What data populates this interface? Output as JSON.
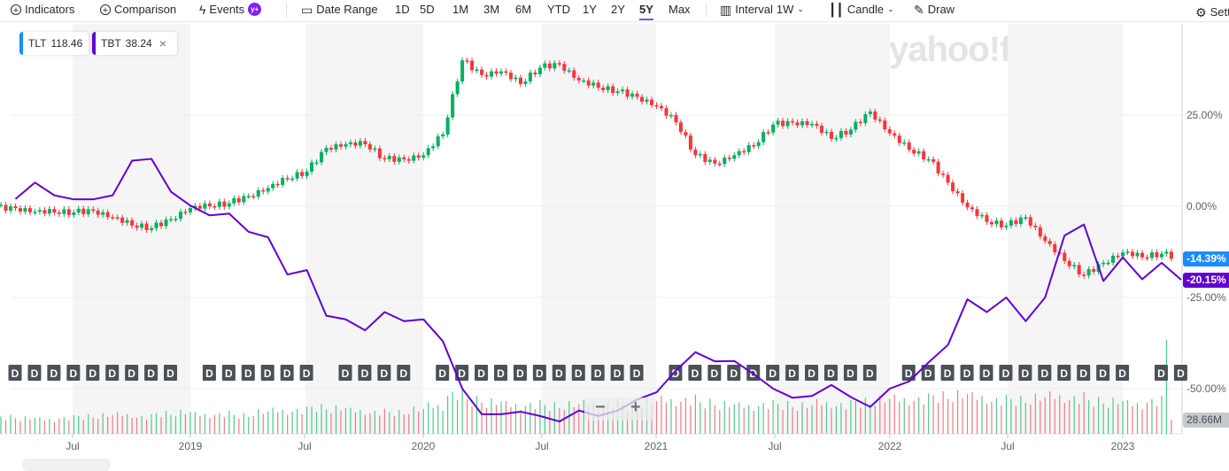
{
  "toolbar": {
    "indicators": "Indicators",
    "comparison": "Comparison",
    "events": "Events",
    "events_badge": "y+",
    "date_range": "Date Range",
    "ranges": [
      "1D",
      "5D",
      "1M",
      "3M",
      "6M",
      "YTD",
      "1Y",
      "2Y",
      "5Y",
      "Max"
    ],
    "active_range": "5Y",
    "interval_label": "Interval",
    "interval_value": "1W",
    "chart_type": "Candle",
    "draw": "Draw",
    "settings": "Settings"
  },
  "legend": [
    {
      "symbol": "TLT",
      "price": "118.46",
      "color": "#1a8cff"
    },
    {
      "symbol": "TBT",
      "price": "38.24",
      "color": "#6001d2",
      "close": "×"
    }
  ],
  "watermark": "yahoo!finance",
  "zoom": {
    "minus": "−",
    "plus": "+"
  },
  "chart_data": {
    "type": "candlestick+line",
    "y_axis": {
      "ticks": [
        "25.00%",
        "0.00%",
        "-25.00%",
        "-50.00%"
      ],
      "tick_values": [
        25,
        0,
        -25,
        -50
      ],
      "position": "right"
    },
    "x_axis": {
      "ticks": [
        "Jul",
        "2019",
        "Jul",
        "2020",
        "Jul",
        "2021",
        "Jul",
        "2022",
        "Jul",
        "2023"
      ]
    },
    "grid": true,
    "dates": [
      "2018-04",
      "2018-05",
      "2018-06",
      "2018-07",
      "2018-08",
      "2018-09",
      "2018-10",
      "2018-11",
      "2018-12",
      "2019-01",
      "2019-02",
      "2019-03",
      "2019-04",
      "2019-05",
      "2019-06",
      "2019-07",
      "2019-08",
      "2019-09",
      "2019-10",
      "2019-11",
      "2019-12",
      "2020-01",
      "2020-02",
      "2020-03",
      "2020-04",
      "2020-05",
      "2020-06",
      "2020-07",
      "2020-08",
      "2020-09",
      "2020-10",
      "2020-11",
      "2020-12",
      "2021-01",
      "2021-02",
      "2021-03",
      "2021-04",
      "2021-05",
      "2021-06",
      "2021-07",
      "2021-08",
      "2021-09",
      "2021-10",
      "2021-11",
      "2021-12",
      "2022-01",
      "2022-02",
      "2022-03",
      "2022-04",
      "2022-05",
      "2022-06",
      "2022-07",
      "2022-08",
      "2022-09",
      "2022-10",
      "2022-11",
      "2022-12",
      "2023-01",
      "2023-02",
      "2023-03",
      "2023-04"
    ],
    "series": [
      {
        "name": "TLT",
        "style": "candle",
        "color_up": "#00b061",
        "color_down": "#ff333a",
        "values": [
          -0.5,
          -1.5,
          -1.7,
          -1.7,
          -1.2,
          -3,
          -5.3,
          -6,
          -3.5,
          -0.5,
          0,
          0.8,
          2.8,
          5,
          7.5,
          9.5,
          16,
          17,
          17,
          12.9,
          12.9,
          14,
          19.7,
          40,
          36,
          37,
          33.5,
          38,
          39,
          34.5,
          32.5,
          31.5,
          30,
          27.5,
          23,
          14,
          11.7,
          14,
          16.5,
          22.4,
          23,
          22.6,
          18.5,
          21,
          26,
          20,
          15.5,
          12.9,
          6.5,
          -0.3,
          -4.3,
          -5.3,
          -3,
          -9.5,
          -15,
          -19,
          -15.5,
          -12.6,
          -14,
          -13,
          -14.39
        ],
        "last_label": "-14.39%",
        "label_color": "#1a8cff"
      },
      {
        "name": "TBT",
        "style": "line",
        "color": "#6001d2",
        "values": [
          2,
          6.5,
          3,
          1.9,
          1.9,
          3,
          12.5,
          13,
          4,
          0.2,
          -2.5,
          -2,
          -7,
          -8.5,
          -18.7,
          -17.5,
          -30,
          -31,
          -34,
          -29,
          -31.5,
          -31,
          -37,
          -50,
          -57,
          -57,
          -56.3,
          -57.5,
          -59,
          -56,
          -57.5,
          -56,
          -53,
          -51,
          -45,
          -40,
          -42.5,
          -42.4,
          -46,
          -50,
          -52.5,
          -52,
          -49,
          -52.3,
          -55,
          -50,
          -48,
          -42.8,
          -38,
          -25.5,
          -29,
          -25,
          -31.5,
          -25,
          -8,
          -5,
          -20.5,
          -14,
          -20,
          -15.5,
          -20.15
        ],
        "last_label": "-20.15%",
        "label_color": "#6001d2"
      }
    ],
    "volume": {
      "unit": "M",
      "last_label": "28.66M",
      "values": [
        35,
        32,
        30,
        34,
        36,
        38,
        40,
        36,
        42,
        44,
        40,
        42,
        38,
        45,
        48,
        50,
        55,
        52,
        48,
        46,
        44,
        50,
        58,
        85,
        70,
        65,
        60,
        62,
        58,
        60,
        62,
        64,
        60,
        66,
        70,
        72,
        64,
        60,
        58,
        62,
        60,
        58,
        64,
        62,
        66,
        70,
        72,
        74,
        78,
        80,
        76,
        72,
        70,
        74,
        78,
        76,
        68,
        66,
        62,
        70,
        28.66
      ]
    },
    "dividend_marker": "D",
    "dividend_months": [
      0,
      1,
      2,
      3,
      4,
      5,
      6,
      7,
      8,
      10,
      11,
      12,
      13,
      14,
      15,
      17,
      18,
      19,
      20,
      22,
      23,
      24,
      25,
      26,
      27,
      28,
      29,
      30,
      31,
      32,
      34,
      35,
      36,
      37,
      38,
      39,
      40,
      41,
      42,
      43,
      44,
      46,
      47,
      48,
      49,
      50,
      51,
      52,
      53,
      54,
      55,
      56,
      57,
      59,
      60
    ]
  }
}
